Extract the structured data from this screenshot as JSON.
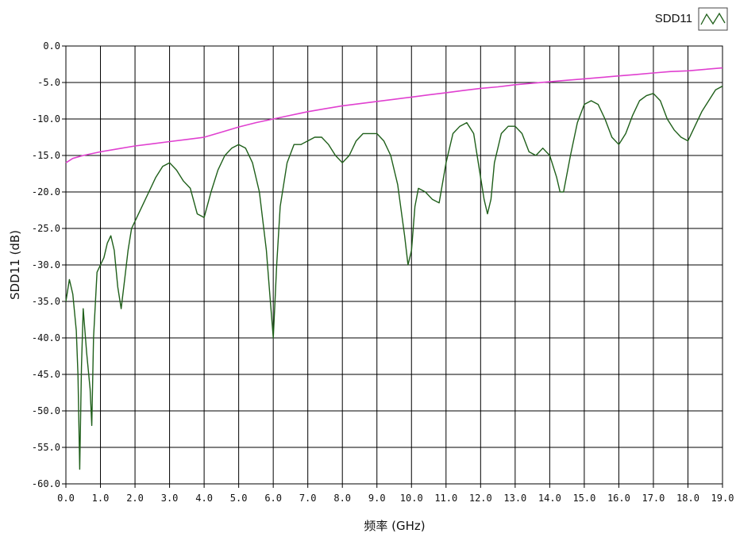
{
  "chart_data": {
    "type": "line",
    "xlabel": "频率 (GHz)",
    "ylabel": "SDD11 (dB)",
    "xlim": [
      0,
      19
    ],
    "ylim": [
      -60,
      0
    ],
    "x_ticks": [
      "0.0",
      "1.0",
      "2.0",
      "3.0",
      "4.0",
      "5.0",
      "6.0",
      "7.0",
      "8.0",
      "9.0",
      "10.0",
      "11.0",
      "12.0",
      "13.0",
      "14.0",
      "15.0",
      "16.0",
      "17.0",
      "18.0",
      "19.0"
    ],
    "y_ticks": [
      "0.0",
      "-5.0",
      "-10.0",
      "-15.0",
      "-20.0",
      "-25.0",
      "-30.0",
      "-35.0",
      "-40.0",
      "-45.0",
      "-50.0",
      "-55.0",
      "-60.0"
    ],
    "grid": true,
    "legend": {
      "position": "top-right",
      "entries": [
        "SDD11"
      ]
    },
    "series": [
      {
        "name": "SDD11",
        "color": "#1f5f1a",
        "x": [
          0.0,
          0.1,
          0.2,
          0.3,
          0.35,
          0.4,
          0.45,
          0.5,
          0.6,
          0.7,
          0.75,
          0.8,
          0.9,
          1.0,
          1.1,
          1.2,
          1.3,
          1.4,
          1.5,
          1.6,
          1.7,
          1.8,
          1.9,
          2.0,
          2.2,
          2.4,
          2.6,
          2.8,
          3.0,
          3.2,
          3.4,
          3.6,
          3.8,
          4.0,
          4.2,
          4.4,
          4.6,
          4.8,
          5.0,
          5.2,
          5.4,
          5.6,
          5.8,
          5.9,
          6.0,
          6.1,
          6.2,
          6.4,
          6.6,
          6.8,
          7.0,
          7.2,
          7.4,
          7.6,
          7.8,
          8.0,
          8.2,
          8.4,
          8.6,
          8.8,
          9.0,
          9.2,
          9.4,
          9.6,
          9.8,
          9.9,
          10.0,
          10.1,
          10.2,
          10.4,
          10.6,
          10.8,
          11.0,
          11.2,
          11.4,
          11.6,
          11.8,
          12.0,
          12.1,
          12.2,
          12.3,
          12.4,
          12.6,
          12.8,
          13.0,
          13.2,
          13.4,
          13.6,
          13.8,
          14.0,
          14.2,
          14.3,
          14.4,
          14.6,
          14.8,
          15.0,
          15.2,
          15.4,
          15.6,
          15.8,
          16.0,
          16.2,
          16.4,
          16.6,
          16.8,
          17.0,
          17.2,
          17.4,
          17.6,
          17.8,
          18.0,
          18.2,
          18.4,
          18.6,
          18.8,
          19.0
        ],
        "y": [
          -35,
          -32,
          -34,
          -39,
          -45,
          -58,
          -44,
          -36,
          -42,
          -47,
          -52,
          -40,
          -31,
          -30,
          -29,
          -27,
          -26,
          -28,
          -33,
          -36,
          -32,
          -28,
          -25,
          -24,
          -22,
          -20,
          -18,
          -16.5,
          -16,
          -17,
          -18.5,
          -19.5,
          -23,
          -23.5,
          -20,
          -17,
          -15,
          -14,
          -13.5,
          -14,
          -16,
          -20,
          -28,
          -34,
          -40,
          -30,
          -22,
          -16,
          -13.5,
          -13.5,
          -13,
          -12.5,
          -12.5,
          -13.5,
          -15,
          -16,
          -15,
          -13,
          -12,
          -12,
          -12,
          -13,
          -15,
          -19,
          -26,
          -30,
          -28,
          -22,
          -19.5,
          -20,
          -21,
          -21.5,
          -16,
          -12,
          -11,
          -10.5,
          -12,
          -18,
          -21,
          -23,
          -21,
          -16,
          -12,
          -11,
          -11,
          -12,
          -14.5,
          -15,
          -14,
          -15,
          -18,
          -20,
          -20,
          -15,
          -10.5,
          -8,
          -7.5,
          -8,
          -10,
          -12.5,
          -13.5,
          -12,
          -9.5,
          -7.5,
          -6.8,
          -6.5,
          -7.5,
          -10,
          -11.5,
          -12.5,
          -13,
          -11,
          -9,
          -7.5,
          -6,
          -5.5
        ]
      },
      {
        "name": "",
        "color": "#e040d0",
        "x": [
          0.0,
          0.2,
          0.5,
          1.0,
          1.5,
          2.0,
          2.5,
          3.0,
          3.5,
          4.0,
          4.5,
          5.0,
          5.5,
          6.0,
          6.5,
          7.0,
          7.5,
          8.0,
          8.5,
          9.0,
          9.5,
          10.0,
          10.5,
          11.0,
          11.5,
          12.0,
          12.5,
          13.0,
          13.5,
          14.0,
          14.5,
          15.0,
          15.5,
          16.0,
          16.5,
          17.0,
          17.5,
          18.0,
          18.5,
          19.0
        ],
        "y": [
          -16,
          -15.4,
          -15,
          -14.5,
          -14.1,
          -13.7,
          -13.4,
          -13.1,
          -12.8,
          -12.5,
          -11.8,
          -11.1,
          -10.5,
          -10,
          -9.5,
          -9,
          -8.6,
          -8.2,
          -7.9,
          -7.6,
          -7.3,
          -7,
          -6.7,
          -6.4,
          -6.1,
          -5.8,
          -5.6,
          -5.3,
          -5.1,
          -4.9,
          -4.7,
          -4.5,
          -4.3,
          -4.1,
          -3.9,
          -3.7,
          -3.5,
          -3.4,
          -3.2,
          -3.0
        ]
      }
    ]
  }
}
